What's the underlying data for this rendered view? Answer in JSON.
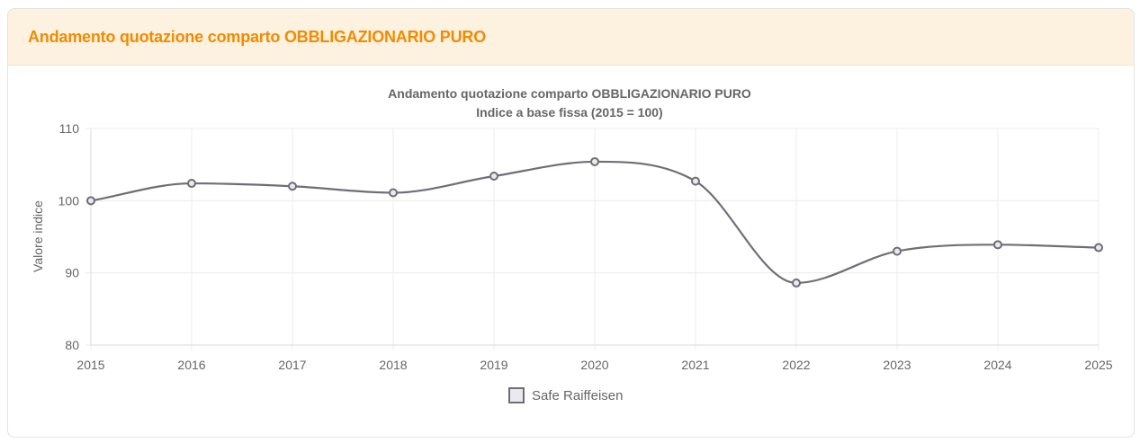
{
  "panel": {
    "title": "Andamento quotazione comparto OBBLIGAZIONARIO PURO"
  },
  "colors": {
    "header_bg": "#fdf1df",
    "title": "#f28b00",
    "series_line": "#6e6e78",
    "grid": "#ececec"
  },
  "chart_data": {
    "type": "line",
    "title": "Andamento quotazione comparto OBBLIGAZIONARIO PURO",
    "subtitle": "Indice a base fissa (2015 = 100)",
    "xlabel": "",
    "ylabel": "Valore indice",
    "categories": [
      "2015",
      "2016",
      "2017",
      "2018",
      "2019",
      "2020",
      "2021",
      "2022",
      "2023",
      "2024",
      "2025"
    ],
    "ylim": [
      80,
      110
    ],
    "yticks": [
      80,
      90,
      100,
      110
    ],
    "series": [
      {
        "name": "Safe Raiffeisen",
        "values": [
          100.0,
          102.4,
          102.0,
          101.1,
          103.4,
          105.4,
          102.7,
          88.6,
          93.0,
          93.9,
          93.5
        ]
      }
    ],
    "grid": true,
    "legend": "bottom-center",
    "smooth": true
  }
}
